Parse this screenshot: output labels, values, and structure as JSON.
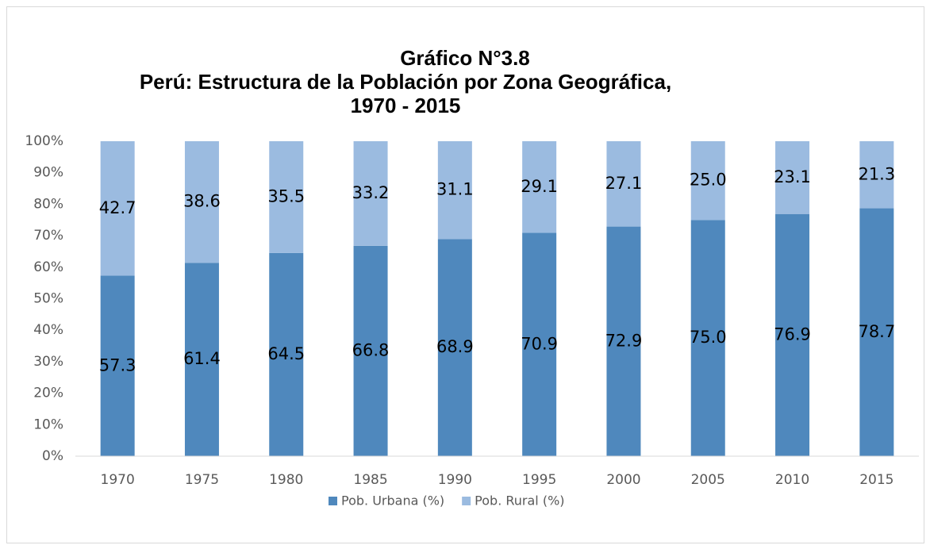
{
  "chart_data": {
    "type": "stacked_bar",
    "title": [
      "Gráfico N°3.8",
      "Perú: Estructura de la Población por Zona Geográfica, 1970 - 2015"
    ],
    "categories": [
      "1970",
      "1975",
      "1980",
      "1985",
      "1990",
      "1995",
      "2000",
      "2005",
      "2010",
      "2015"
    ],
    "series": [
      {
        "name": "Pob. Urbana (%)",
        "color": "#4f88bd",
        "values": [
          57.3,
          61.4,
          64.5,
          66.8,
          68.9,
          70.9,
          72.9,
          75.0,
          76.9,
          78.7
        ],
        "value_labels": [
          "57.3",
          "61.4",
          "64.5",
          "66.8",
          "68.9",
          "70.9",
          "72.9",
          "75.0",
          "76.9",
          "78.7"
        ]
      },
      {
        "name": "Pob. Rural (%)",
        "color": "#9bbbe0",
        "values": [
          42.7,
          38.6,
          35.5,
          33.2,
          31.1,
          29.1,
          27.1,
          25.0,
          23.1,
          21.3
        ],
        "value_labels": [
          "42.7",
          "38.6",
          "35.5",
          "33.2",
          "31.1",
          "29.1",
          "27.1",
          "25.0",
          "23.1",
          "21.3"
        ]
      }
    ],
    "ylim": [
      0,
      100
    ],
    "yticks": [
      {
        "value": 0,
        "label": "0%"
      },
      {
        "value": 10,
        "label": "10%"
      },
      {
        "value": 20,
        "label": "20%"
      },
      {
        "value": 30,
        "label": "30%"
      },
      {
        "value": 40,
        "label": "40%"
      },
      {
        "value": 50,
        "label": "50%"
      },
      {
        "value": 60,
        "label": "60%"
      },
      {
        "value": 70,
        "label": "70%"
      },
      {
        "value": 80,
        "label": "80%"
      },
      {
        "value": 90,
        "label": "90%"
      },
      {
        "value": 100,
        "label": "100%"
      }
    ],
    "grid": false,
    "legend": "bottom"
  }
}
